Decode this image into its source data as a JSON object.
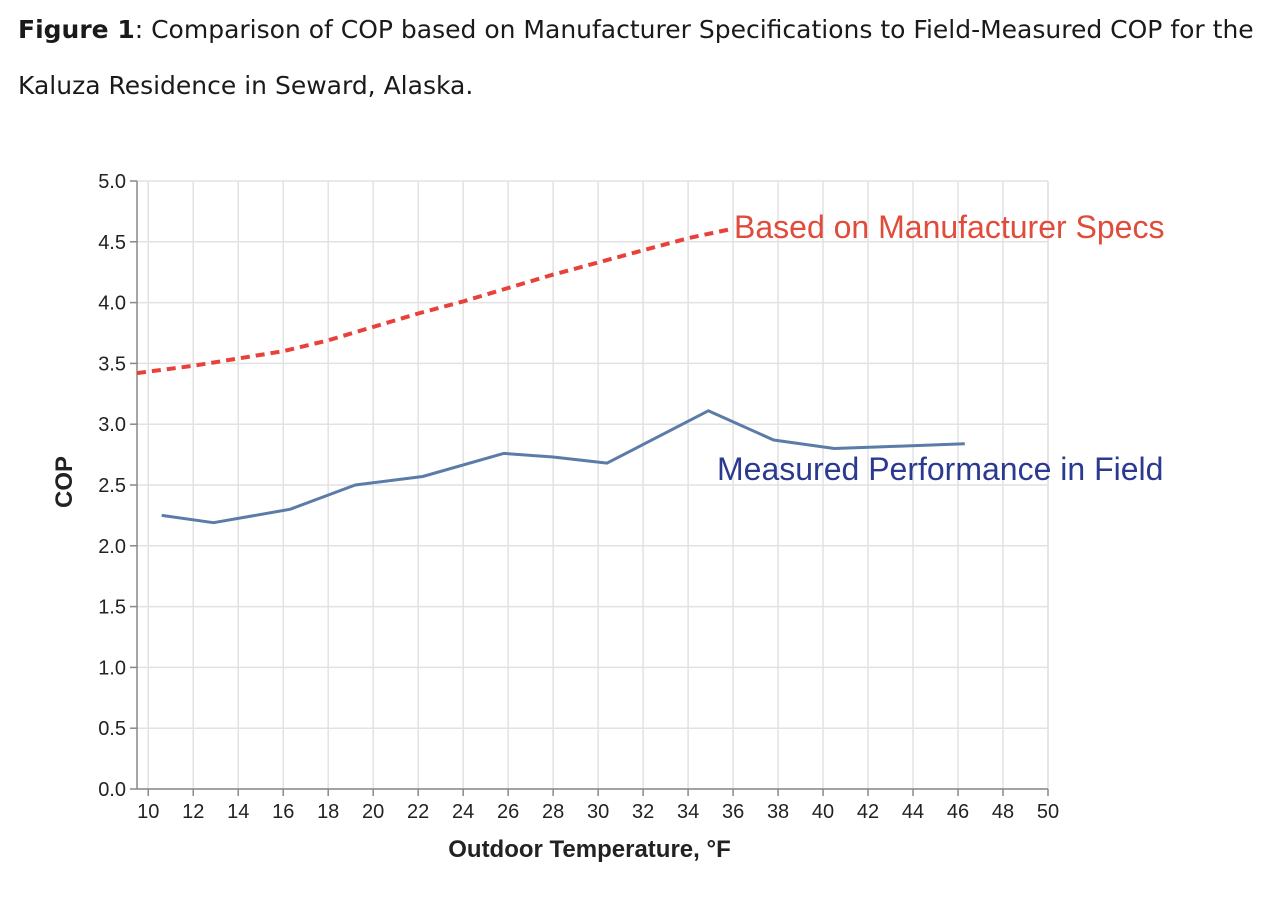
{
  "figure": {
    "label": "Figure 1",
    "caption": ": Comparison of COP based on Manufacturer Specifications to Field-Measured COP for the Kaluza Residence in Seward, Alaska."
  },
  "chart_data": {
    "type": "line",
    "title": "",
    "xlabel": "Outdoor Temperature, °F",
    "ylabel": "COP",
    "xlim": [
      9.5,
      50
    ],
    "ylim": [
      0,
      5
    ],
    "x_ticks": [
      10,
      12,
      14,
      16,
      18,
      20,
      22,
      24,
      26,
      28,
      30,
      32,
      34,
      36,
      38,
      40,
      42,
      44,
      46,
      48,
      50
    ],
    "y_ticks": [
      "0.0",
      "0.5",
      "1.0",
      "1.5",
      "2.0",
      "2.5",
      "3.0",
      "3.5",
      "4.0",
      "4.5",
      "5.0"
    ],
    "grid": true,
    "series": [
      {
        "name": "Based on Manufacturer Specs",
        "color": "#e8413a",
        "style": "dashed",
        "x": [
          9.5,
          12,
          14,
          16,
          18,
          20,
          22,
          24,
          26,
          28,
          30,
          32,
          34,
          35.8
        ],
        "y": [
          3.42,
          3.48,
          3.54,
          3.6,
          3.69,
          3.8,
          3.91,
          4.01,
          4.12,
          4.23,
          4.33,
          4.43,
          4.53,
          4.6
        ]
      },
      {
        "name": "Measured Performance in Field",
        "color": "#5b7ba8",
        "style": "solid",
        "x": [
          10.6,
          12.9,
          16.3,
          19.2,
          22.2,
          25.8,
          28,
          30.4,
          34.9,
          37.8,
          40.5,
          43.5,
          46.3
        ],
        "y": [
          2.25,
          2.19,
          2.3,
          2.5,
          2.57,
          2.76,
          2.73,
          2.68,
          3.11,
          2.87,
          2.8,
          2.82,
          2.84
        ]
      }
    ],
    "annotations": [
      {
        "series": "Based on Manufacturer Specs",
        "text": "Based on Manufacturer Specs",
        "color": "#e04b3a"
      },
      {
        "series": "Measured Performance in Field",
        "text": "Measured Performance in Field",
        "color": "#2b3a8f"
      }
    ]
  }
}
